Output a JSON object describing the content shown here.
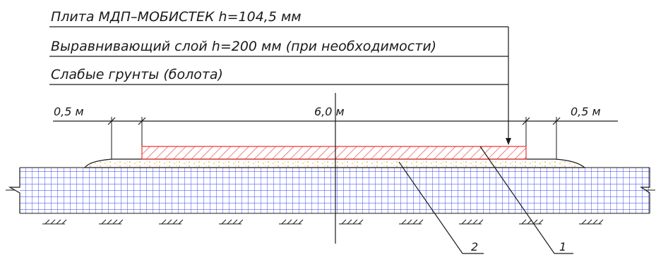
{
  "legend": {
    "layer_plate": "Плита МДП–МОБИСТЕК h=104,5 мм",
    "layer_leveling": "Выравнивающий слой h=200 мм (при необходимости)",
    "layer_soil": "Слабые грунты (болота)"
  },
  "dimensions": {
    "left_margin": "0,5 м",
    "center_width": "6,0 м",
    "right_margin": "0,5 м"
  },
  "callouts": {
    "plate": "1",
    "leveling": "2"
  },
  "colors": {
    "line": "#1a1a1a",
    "soil_grid": "#2b3cf0",
    "plate_hatch": "#e8322d",
    "leveling_fill": "#f0c890"
  }
}
